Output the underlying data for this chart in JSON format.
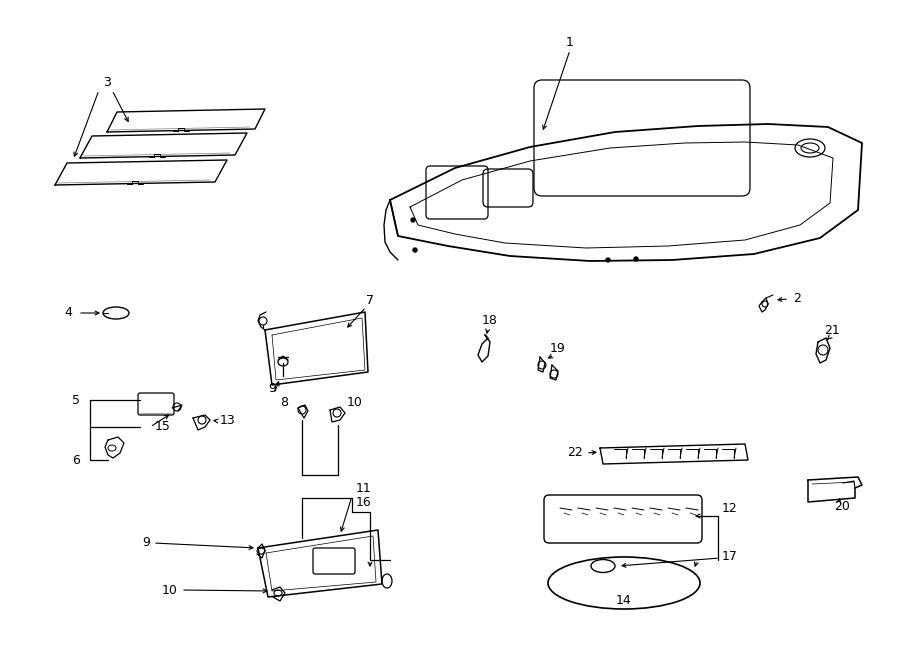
{
  "bg_color": "#ffffff",
  "fig_width": 9.0,
  "fig_height": 6.61,
  "dpi": 100
}
